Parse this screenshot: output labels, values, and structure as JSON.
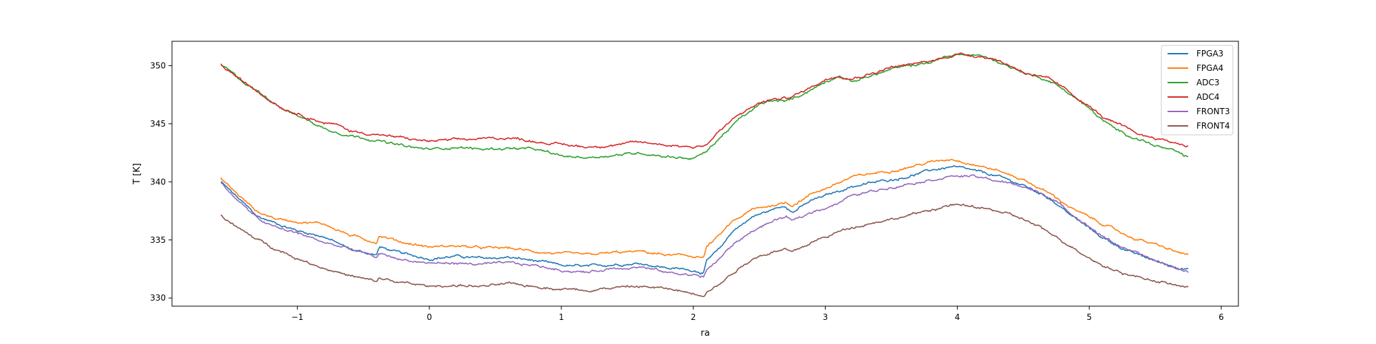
{
  "chart_data": {
    "type": "line",
    "title": "",
    "xlabel": "ra",
    "ylabel": "T [K]",
    "xlim": [
      -1.95,
      6.13
    ],
    "ylim": [
      329.3,
      352.1
    ],
    "xticks": [
      -1,
      0,
      1,
      2,
      3,
      4,
      5,
      6
    ],
    "xtick_labels": [
      "−1",
      "0",
      "1",
      "2",
      "3",
      "4",
      "5",
      "6"
    ],
    "yticks": [
      330,
      335,
      340,
      345,
      350
    ],
    "ytick_labels": [
      "330",
      "335",
      "340",
      "345",
      "350"
    ],
    "grid": false,
    "legend_position": "top-right",
    "series": [
      {
        "name": "FPGA3",
        "color": "#1f77b4",
        "x": [
          -1.58,
          -1.45,
          -1.3,
          -1.15,
          -1.0,
          -0.8,
          -0.6,
          -0.4,
          -0.38,
          -0.2,
          0.0,
          0.2,
          0.4,
          0.6,
          0.8,
          1.0,
          1.2,
          1.4,
          1.6,
          1.8,
          2.0,
          2.08,
          2.1,
          2.2,
          2.3,
          2.45,
          2.6,
          2.7,
          2.75,
          2.9,
          3.1,
          3.2,
          3.4,
          3.6,
          3.8,
          3.96,
          4.1,
          4.3,
          4.5,
          4.7,
          4.9,
          5.1,
          5.3,
          5.5,
          5.65,
          5.75
        ],
        "values": [
          340.0,
          338.6,
          337.0,
          336.4,
          335.8,
          335.3,
          334.2,
          333.7,
          334.4,
          333.8,
          333.4,
          333.6,
          333.4,
          333.5,
          333.2,
          332.8,
          332.7,
          332.9,
          333.0,
          332.6,
          332.4,
          332.2,
          333.2,
          334.2,
          335.8,
          337.0,
          337.6,
          338.0,
          337.4,
          338.4,
          339.2,
          339.6,
          340.0,
          340.4,
          341.0,
          341.3,
          341.0,
          340.5,
          339.7,
          338.6,
          336.8,
          335.2,
          334.0,
          333.2,
          332.7,
          332.5
        ]
      },
      {
        "name": "FPGA4",
        "color": "#ff7f0e",
        "x": [
          -1.58,
          -1.45,
          -1.3,
          -1.15,
          -1.0,
          -0.8,
          -0.6,
          -0.4,
          -0.38,
          -0.2,
          0.0,
          0.2,
          0.4,
          0.6,
          0.8,
          1.0,
          1.2,
          1.4,
          1.6,
          1.8,
          2.0,
          2.08,
          2.1,
          2.2,
          2.3,
          2.45,
          2.6,
          2.7,
          2.75,
          2.9,
          3.1,
          3.2,
          3.4,
          3.6,
          3.8,
          3.96,
          4.1,
          4.3,
          4.5,
          4.7,
          4.9,
          5.1,
          5.3,
          5.5,
          5.65,
          5.75
        ],
        "values": [
          340.3,
          338.9,
          337.4,
          336.8,
          336.6,
          336.4,
          335.4,
          334.8,
          335.4,
          334.8,
          334.4,
          334.5,
          334.3,
          334.3,
          334.0,
          333.8,
          333.7,
          333.9,
          334.0,
          333.7,
          333.6,
          333.5,
          334.4,
          335.4,
          336.6,
          337.6,
          338.0,
          338.2,
          338.0,
          339.0,
          339.9,
          340.4,
          340.8,
          341.2,
          341.7,
          342.0,
          341.6,
          341.0,
          340.2,
          339.0,
          337.5,
          336.4,
          335.3,
          334.6,
          334.0,
          333.7
        ]
      },
      {
        "name": "ADC3",
        "color": "#2ca02c",
        "x": [
          -1.58,
          -1.5,
          -1.4,
          -1.3,
          -1.2,
          -1.1,
          -1.0,
          -0.9,
          -0.8,
          -0.7,
          -0.6,
          -0.5,
          -0.4,
          -0.3,
          -0.2,
          -0.1,
          0.0,
          0.2,
          0.4,
          0.6,
          0.8,
          1.0,
          1.2,
          1.4,
          1.6,
          1.8,
          2.0,
          2.1,
          2.2,
          2.35,
          2.5,
          2.6,
          2.7,
          2.8,
          2.9,
          3.0,
          3.1,
          3.2,
          3.3,
          3.4,
          3.5,
          3.6,
          3.7,
          3.8,
          3.9,
          4.0,
          4.1,
          4.2,
          4.3,
          4.4,
          4.5,
          4.6,
          4.7,
          4.8,
          4.9,
          5.0,
          5.1,
          5.2,
          5.3,
          5.4,
          5.5,
          5.6,
          5.75
        ],
        "values": [
          350.1,
          349.4,
          348.5,
          347.8,
          347.0,
          346.3,
          345.7,
          345.2,
          344.6,
          344.3,
          344.0,
          343.8,
          343.6,
          343.3,
          343.1,
          342.9,
          342.8,
          343.0,
          342.8,
          342.9,
          342.8,
          342.2,
          342.1,
          342.3,
          342.5,
          342.2,
          342.0,
          342.6,
          343.8,
          345.4,
          346.6,
          347.0,
          346.9,
          347.4,
          348.0,
          348.6,
          349.2,
          348.6,
          349.0,
          349.3,
          349.7,
          349.9,
          350.1,
          350.3,
          350.7,
          351.0,
          350.9,
          350.8,
          350.4,
          349.9,
          349.4,
          349.1,
          348.7,
          348.0,
          347.2,
          346.3,
          345.3,
          344.5,
          344.0,
          343.6,
          343.1,
          342.8,
          342.1
        ]
      },
      {
        "name": "ADC4",
        "color": "#d62728",
        "x": [
          -1.58,
          -1.5,
          -1.4,
          -1.3,
          -1.2,
          -1.1,
          -1.0,
          -0.9,
          -0.8,
          -0.7,
          -0.6,
          -0.5,
          -0.4,
          -0.3,
          -0.2,
          -0.1,
          0.0,
          0.2,
          0.4,
          0.6,
          0.8,
          1.0,
          1.2,
          1.4,
          1.6,
          1.8,
          2.0,
          2.1,
          2.2,
          2.35,
          2.5,
          2.6,
          2.7,
          2.8,
          2.9,
          3.0,
          3.1,
          3.2,
          3.3,
          3.4,
          3.5,
          3.6,
          3.7,
          3.8,
          3.9,
          4.0,
          4.1,
          4.2,
          4.3,
          4.4,
          4.5,
          4.6,
          4.7,
          4.8,
          4.9,
          5.0,
          5.1,
          5.2,
          5.3,
          5.4,
          5.5,
          5.6,
          5.75
        ],
        "values": [
          350.0,
          349.4,
          348.5,
          347.8,
          347.0,
          346.3,
          345.9,
          345.5,
          345.1,
          344.9,
          344.4,
          344.2,
          344.1,
          343.9,
          343.8,
          343.6,
          343.5,
          343.6,
          343.7,
          343.8,
          343.5,
          343.2,
          343.0,
          343.2,
          343.4,
          343.2,
          343.0,
          343.2,
          344.4,
          345.8,
          346.8,
          347.1,
          347.2,
          347.6,
          348.2,
          348.8,
          349.2,
          348.9,
          349.2,
          349.5,
          349.9,
          350.0,
          350.2,
          350.4,
          350.7,
          351.0,
          350.9,
          350.8,
          350.5,
          350.0,
          349.5,
          349.1,
          348.8,
          348.1,
          347.3,
          346.5,
          345.6,
          345.0,
          344.5,
          344.0,
          343.8,
          343.5,
          343.1
        ]
      },
      {
        "name": "FRONT3",
        "color": "#9467bd",
        "x": [
          -1.58,
          -1.45,
          -1.3,
          -1.15,
          -1.0,
          -0.8,
          -0.6,
          -0.4,
          -0.38,
          -0.2,
          0.0,
          0.2,
          0.4,
          0.6,
          0.8,
          1.0,
          1.2,
          1.4,
          1.6,
          1.8,
          2.0,
          2.08,
          2.1,
          2.2,
          2.3,
          2.45,
          2.6,
          2.7,
          2.75,
          2.9,
          3.1,
          3.2,
          3.4,
          3.6,
          3.8,
          3.96,
          4.1,
          4.3,
          4.5,
          4.7,
          4.9,
          5.1,
          5.3,
          5.5,
          5.65,
          5.75
        ],
        "values": [
          339.9,
          338.4,
          336.8,
          336.0,
          335.6,
          334.8,
          334.2,
          333.5,
          333.8,
          333.3,
          333.0,
          333.0,
          332.9,
          333.0,
          332.8,
          332.4,
          332.2,
          332.6,
          332.7,
          332.2,
          332.0,
          331.8,
          332.4,
          333.4,
          334.6,
          335.8,
          336.6,
          337.0,
          336.6,
          337.4,
          338.2,
          338.8,
          339.3,
          339.8,
          340.2,
          340.5,
          340.5,
          340.1,
          339.6,
          338.7,
          337.0,
          335.3,
          334.1,
          333.2,
          332.6,
          332.3
        ]
      },
      {
        "name": "FRONT4",
        "color": "#8c564b",
        "x": [
          -1.58,
          -1.45,
          -1.3,
          -1.15,
          -1.0,
          -0.8,
          -0.6,
          -0.4,
          -0.38,
          -0.2,
          0.0,
          0.2,
          0.4,
          0.6,
          0.8,
          1.0,
          1.2,
          1.4,
          1.6,
          1.8,
          2.0,
          2.08,
          2.1,
          2.2,
          2.3,
          2.45,
          2.6,
          2.7,
          2.75,
          2.9,
          3.1,
          3.2,
          3.4,
          3.6,
          3.8,
          3.96,
          4.1,
          4.3,
          4.5,
          4.7,
          4.9,
          5.1,
          5.3,
          5.5,
          5.65,
          5.75
        ],
        "values": [
          337.1,
          336.0,
          335.0,
          334.2,
          333.4,
          332.6,
          331.9,
          331.4,
          331.7,
          331.3,
          331.0,
          331.1,
          331.0,
          331.2,
          331.0,
          330.8,
          330.7,
          330.9,
          331.0,
          330.8,
          330.4,
          330.3,
          330.6,
          331.2,
          332.2,
          333.4,
          334.0,
          334.2,
          333.9,
          334.8,
          335.7,
          336.1,
          336.6,
          337.0,
          337.6,
          338.0,
          337.9,
          337.5,
          336.8,
          335.6,
          334.2,
          332.8,
          332.0,
          331.5,
          331.1,
          330.9
        ]
      }
    ]
  }
}
